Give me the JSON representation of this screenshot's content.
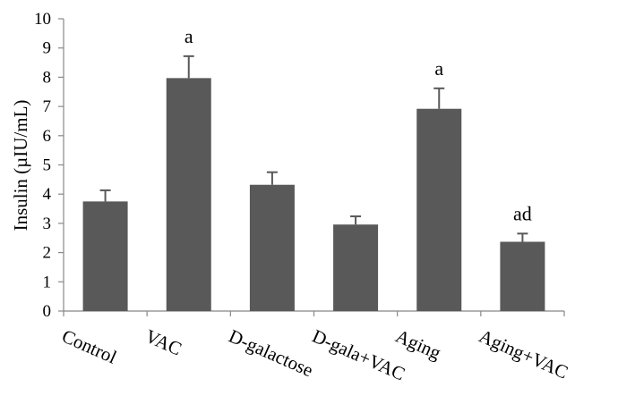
{
  "chart_data": {
    "type": "bar",
    "categories": [
      "Control",
      "VAC",
      "D-galactose",
      "D-gala+VAC",
      "Aging",
      "Aging+VAC"
    ],
    "values": [
      3.75,
      7.97,
      4.32,
      2.96,
      6.92,
      2.37
    ],
    "errors": [
      0.38,
      0.75,
      0.43,
      0.28,
      0.7,
      0.28
    ],
    "annotations": [
      "",
      "a",
      "",
      "",
      "a",
      "ad"
    ],
    "ylabel": "Insulin (µIU/mL)",
    "xlabel": "",
    "ylim": [
      0,
      10
    ],
    "yticks": [
      0,
      1,
      2,
      3,
      4,
      5,
      6,
      7,
      8,
      9,
      10
    ],
    "grid": false,
    "legend": "none",
    "bar_color": "#595959"
  }
}
